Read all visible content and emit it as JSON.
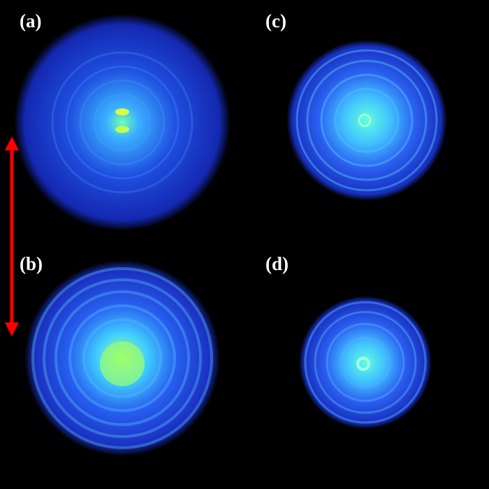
{
  "panels": [
    {
      "label": "(a)"
    },
    {
      "label": "(b)"
    },
    {
      "label": "(c)"
    },
    {
      "label": "(d)"
    }
  ],
  "colors": {
    "background": "#000000",
    "ring": "#2a4dff",
    "center": "#c8ff3c",
    "arrow": "#ff0000"
  },
  "arrow": {
    "type": "double-headed",
    "color": "#ff0000"
  }
}
